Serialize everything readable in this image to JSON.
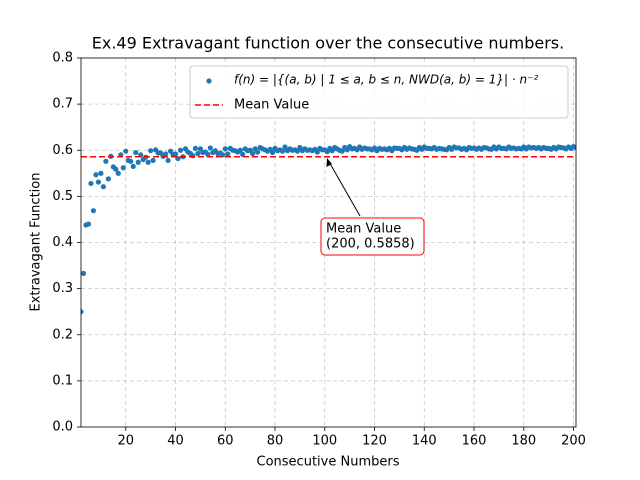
{
  "chart_data": {
    "type": "scatter",
    "title": "Ex.49 Extravagant function over the consecutive numbers.",
    "x_label": "Consecutive Numbers",
    "y_label": "Extravagant Function",
    "x": [
      2,
      3,
      4,
      5,
      6,
      7,
      8,
      9,
      10,
      11,
      12,
      13,
      14,
      15,
      16,
      17,
      18,
      19,
      20,
      21,
      22,
      23,
      24,
      25,
      26,
      27,
      28,
      29,
      30,
      31,
      32,
      33,
      34,
      35,
      36,
      37,
      38,
      39,
      40,
      41,
      42,
      43,
      44,
      45,
      46,
      47,
      48,
      49,
      50,
      51,
      52,
      53,
      54,
      55,
      56,
      57,
      58,
      59,
      60,
      61,
      62,
      63,
      64,
      65,
      66,
      67,
      68,
      69,
      70,
      71,
      72,
      73,
      74,
      75,
      76,
      77,
      78,
      79,
      80,
      81,
      82,
      83,
      84,
      85,
      86,
      87,
      88,
      89,
      90,
      91,
      92,
      93,
      94,
      95,
      96,
      97,
      98,
      99,
      100,
      101,
      102,
      103,
      104,
      105,
      106,
      107,
      108,
      109,
      110,
      111,
      112,
      113,
      114,
      115,
      116,
      117,
      118,
      119,
      120,
      121,
      122,
      123,
      124,
      125,
      126,
      127,
      128,
      129,
      130,
      131,
      132,
      133,
      134,
      135,
      136,
      137,
      138,
      139,
      140,
      141,
      142,
      143,
      144,
      145,
      146,
      147,
      148,
      149,
      150,
      151,
      152,
      153,
      154,
      155,
      156,
      157,
      158,
      159,
      160,
      161,
      162,
      163,
      164,
      165,
      166,
      167,
      168,
      169,
      170,
      171,
      172,
      173,
      174,
      175,
      176,
      177,
      178,
      179,
      180,
      181,
      182,
      183,
      184,
      185,
      186,
      187,
      188,
      189,
      190,
      191,
      192,
      193,
      194,
      195,
      196,
      197,
      198,
      199,
      200,
      201
    ],
    "series": [
      {
        "name": "f(n) = |{(a, b) | 1 ≤ a, b ≤ n, NWD(a, b) = 1}| · n⁻²",
        "color": "#1f77b4",
        "values": [
          0.25,
          0.333,
          0.438,
          0.44,
          0.528,
          0.469,
          0.547,
          0.531,
          0.55,
          0.521,
          0.576,
          0.538,
          0.587,
          0.564,
          0.559,
          0.55,
          0.59,
          0.562,
          0.598,
          0.578,
          0.576,
          0.565,
          0.595,
          0.574,
          0.59,
          0.58,
          0.585,
          0.574,
          0.599,
          0.578,
          0.601,
          0.594,
          0.594,
          0.587,
          0.592,
          0.578,
          0.598,
          0.591,
          0.592,
          0.582,
          0.6,
          0.586,
          0.603,
          0.596,
          0.593,
          0.588,
          0.604,
          0.593,
          0.603,
          0.595,
          0.596,
          0.591,
          0.605,
          0.595,
          0.599,
          0.593,
          0.594,
          0.59,
          0.603,
          0.592,
          0.604,
          0.6,
          0.599,
          0.596,
          0.6,
          0.591,
          0.603,
          0.599,
          0.6,
          0.593,
          0.603,
          0.596,
          0.606,
          0.603,
          0.601,
          0.598,
          0.602,
          0.595,
          0.604,
          0.599,
          0.601,
          0.598,
          0.607,
          0.599,
          0.603,
          0.6,
          0.601,
          0.598,
          0.606,
          0.599,
          0.603,
          0.6,
          0.601,
          0.599,
          0.602,
          0.596,
          0.604,
          0.601,
          0.601,
          0.597,
          0.604,
          0.599,
          0.606,
          0.603,
          0.6,
          0.598,
          0.606,
          0.601,
          0.608,
          0.603,
          0.604,
          0.601,
          0.607,
          0.602,
          0.605,
          0.603,
          0.603,
          0.601,
          0.605,
          0.599,
          0.604,
          0.602,
          0.603,
          0.601,
          0.604,
          0.599,
          0.605,
          0.604,
          0.604,
          0.601,
          0.606,
          0.602,
          0.605,
          0.603,
          0.602,
          0.6,
          0.606,
          0.602,
          0.607,
          0.604,
          0.604,
          0.603,
          0.606,
          0.602,
          0.604,
          0.603,
          0.602,
          0.601,
          0.606,
          0.602,
          0.607,
          0.605,
          0.605,
          0.602,
          0.604,
          0.601,
          0.606,
          0.604,
          0.605,
          0.602,
          0.605,
          0.602,
          0.606,
          0.605,
          0.603,
          0.602,
          0.607,
          0.603,
          0.607,
          0.604,
          0.604,
          0.603,
          0.607,
          0.604,
          0.605,
          0.603,
          0.604,
          0.603,
          0.607,
          0.603,
          0.607,
          0.605,
          0.606,
          0.604,
          0.606,
          0.603,
          0.606,
          0.604,
          0.604,
          0.602,
          0.606,
          0.603,
          0.607,
          0.606,
          0.605,
          0.603,
          0.607,
          0.604,
          0.608,
          0.606
        ]
      }
    ],
    "mean_line": {
      "name": "Mean Value",
      "value": 0.5858,
      "color": "#ff0000"
    },
    "annotation": [
      "Mean Value",
      "(200, 0.5858)"
    ],
    "xlim": [
      2,
      201
    ],
    "xticks": [
      20,
      40,
      60,
      80,
      100,
      120,
      140,
      160,
      180,
      200
    ],
    "ylim": [
      0,
      0.8
    ],
    "yticks": [
      {
        "value": 0,
        "label": "0.0"
      },
      0.1,
      0.2,
      0.3,
      0.4,
      0.5,
      0.6,
      0.7,
      0.8
    ],
    "grid": true,
    "legend": "upper right"
  }
}
